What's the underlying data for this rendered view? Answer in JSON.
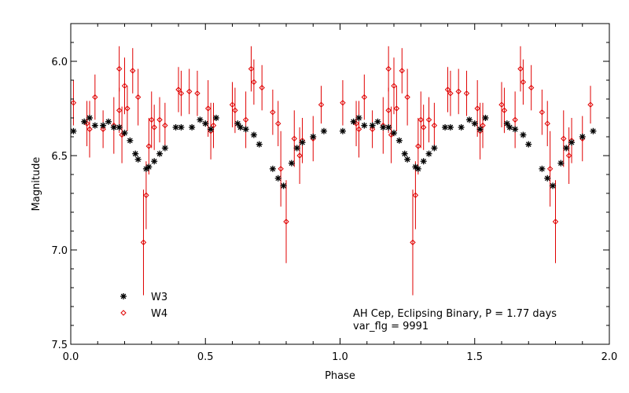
{
  "chart_data": {
    "type": "scatter",
    "title": "",
    "xlabel": "Phase",
    "ylabel": "Magnitude",
    "xlim": [
      0.0,
      2.0
    ],
    "ylim": [
      7.5,
      5.8
    ],
    "y_inverted": true,
    "grid": false,
    "legend_position": "bottom-left",
    "x_ticks": [
      "0.0",
      "0.5",
      "1.0",
      "1.5",
      "2.0"
    ],
    "x_tick_values": [
      0.0,
      0.5,
      1.0,
      1.5,
      2.0
    ],
    "y_ticks": [
      "6.0",
      "6.5",
      "7.0",
      "7.5"
    ],
    "y_tick_values": [
      6.0,
      6.5,
      7.0,
      7.5
    ],
    "annotations": [
      "AH Cep, Eclipsing Binary, P = 1.77 days",
      "var_flg = 9991"
    ],
    "series": [
      {
        "name": "W3",
        "marker": "asterisk",
        "color": "#000000",
        "points": [
          [
            0.01,
            6.37
          ],
          [
            0.05,
            6.32
          ],
          [
            0.07,
            6.3
          ],
          [
            0.09,
            6.34
          ],
          [
            0.12,
            6.34
          ],
          [
            0.14,
            6.32
          ],
          [
            0.16,
            6.35
          ],
          [
            0.18,
            6.35
          ],
          [
            0.2,
            6.38
          ],
          [
            0.22,
            6.42
          ],
          [
            0.24,
            6.49
          ],
          [
            0.25,
            6.52
          ],
          [
            0.28,
            6.57
          ],
          [
            0.29,
            6.56
          ],
          [
            0.31,
            6.53
          ],
          [
            0.33,
            6.49
          ],
          [
            0.35,
            6.46
          ],
          [
            0.39,
            6.35
          ],
          [
            0.41,
            6.35
          ],
          [
            0.45,
            6.35
          ],
          [
            0.48,
            6.31
          ],
          [
            0.5,
            6.33
          ],
          [
            0.52,
            6.36
          ],
          [
            0.54,
            6.3
          ],
          [
            0.62,
            6.33
          ],
          [
            0.63,
            6.35
          ],
          [
            0.65,
            6.36
          ],
          [
            0.68,
            6.39
          ],
          [
            0.7,
            6.44
          ],
          [
            0.75,
            6.57
          ],
          [
            0.77,
            6.62
          ],
          [
            0.79,
            6.66
          ],
          [
            0.82,
            6.54
          ],
          [
            0.84,
            6.46
          ],
          [
            0.86,
            6.43
          ],
          [
            0.9,
            6.4
          ],
          [
            0.94,
            6.37
          ],
          [
            1.01,
            6.37
          ],
          [
            1.05,
            6.32
          ],
          [
            1.07,
            6.3
          ],
          [
            1.09,
            6.34
          ],
          [
            1.12,
            6.34
          ],
          [
            1.14,
            6.32
          ],
          [
            1.16,
            6.35
          ],
          [
            1.18,
            6.35
          ],
          [
            1.2,
            6.38
          ],
          [
            1.22,
            6.42
          ],
          [
            1.24,
            6.49
          ],
          [
            1.25,
            6.52
          ],
          [
            1.28,
            6.56
          ],
          [
            1.29,
            6.57
          ],
          [
            1.31,
            6.53
          ],
          [
            1.33,
            6.49
          ],
          [
            1.35,
            6.46
          ],
          [
            1.39,
            6.35
          ],
          [
            1.41,
            6.35
          ],
          [
            1.45,
            6.35
          ],
          [
            1.48,
            6.31
          ],
          [
            1.5,
            6.33
          ],
          [
            1.52,
            6.36
          ],
          [
            1.54,
            6.3
          ],
          [
            1.62,
            6.33
          ],
          [
            1.63,
            6.35
          ],
          [
            1.65,
            6.36
          ],
          [
            1.68,
            6.39
          ],
          [
            1.7,
            6.44
          ],
          [
            1.75,
            6.57
          ],
          [
            1.77,
            6.62
          ],
          [
            1.79,
            6.66
          ],
          [
            1.82,
            6.54
          ],
          [
            1.84,
            6.46
          ],
          [
            1.86,
            6.43
          ],
          [
            1.9,
            6.4
          ],
          [
            1.94,
            6.37
          ]
        ]
      },
      {
        "name": "W4",
        "marker": "diamond",
        "color": "#e00000",
        "points": [
          [
            0.01,
            6.22,
            0.12
          ],
          [
            0.06,
            6.33,
            0.12
          ],
          [
            0.07,
            6.36,
            0.15
          ],
          [
            0.09,
            6.19,
            0.12
          ],
          [
            0.12,
            6.36,
            0.1
          ],
          [
            0.16,
            6.34,
            0.15
          ],
          [
            0.18,
            6.04,
            0.12
          ],
          [
            0.18,
            6.26,
            0.12
          ],
          [
            0.19,
            6.39,
            0.15
          ],
          [
            0.2,
            6.13,
            0.15
          ],
          [
            0.21,
            6.25,
            0.12
          ],
          [
            0.23,
            6.05,
            0.12
          ],
          [
            0.25,
            6.19,
            0.15
          ],
          [
            0.27,
            6.96,
            0.28
          ],
          [
            0.28,
            6.71,
            0.18
          ],
          [
            0.29,
            6.45,
            0.15
          ],
          [
            0.3,
            6.31,
            0.15
          ],
          [
            0.31,
            6.35,
            0.12
          ],
          [
            0.33,
            6.31,
            0.12
          ],
          [
            0.35,
            6.34,
            0.12
          ],
          [
            0.4,
            6.15,
            0.12
          ],
          [
            0.41,
            6.17,
            0.12
          ],
          [
            0.44,
            6.16,
            0.12
          ],
          [
            0.47,
            6.17,
            0.12
          ],
          [
            0.51,
            6.25,
            0.15
          ],
          [
            0.52,
            6.37,
            0.15
          ],
          [
            0.53,
            6.34,
            0.12
          ],
          [
            0.6,
            6.23,
            0.12
          ],
          [
            0.61,
            6.26,
            0.12
          ],
          [
            0.65,
            6.31,
            0.15
          ],
          [
            0.67,
            6.04,
            0.12
          ],
          [
            0.68,
            6.11,
            0.12
          ],
          [
            0.71,
            6.14,
            0.12
          ],
          [
            0.75,
            6.27,
            0.12
          ],
          [
            0.77,
            6.33,
            0.12
          ],
          [
            0.78,
            6.57,
            0.2
          ],
          [
            0.8,
            6.85,
            0.22
          ],
          [
            0.83,
            6.41,
            0.15
          ],
          [
            0.85,
            6.5,
            0.15
          ],
          [
            0.86,
            6.42,
            0.12
          ],
          [
            0.9,
            6.41,
            0.12
          ],
          [
            0.93,
            6.23,
            0.1
          ],
          [
            1.01,
            6.22,
            0.12
          ],
          [
            1.06,
            6.33,
            0.12
          ],
          [
            1.07,
            6.36,
            0.15
          ],
          [
            1.09,
            6.19,
            0.12
          ],
          [
            1.12,
            6.36,
            0.1
          ],
          [
            1.16,
            6.34,
            0.15
          ],
          [
            1.18,
            6.04,
            0.12
          ],
          [
            1.18,
            6.26,
            0.12
          ],
          [
            1.19,
            6.39,
            0.15
          ],
          [
            1.2,
            6.13,
            0.15
          ],
          [
            1.21,
            6.25,
            0.12
          ],
          [
            1.23,
            6.05,
            0.12
          ],
          [
            1.25,
            6.19,
            0.15
          ],
          [
            1.27,
            6.96,
            0.28
          ],
          [
            1.28,
            6.71,
            0.18
          ],
          [
            1.29,
            6.45,
            0.15
          ],
          [
            1.3,
            6.31,
            0.15
          ],
          [
            1.31,
            6.35,
            0.12
          ],
          [
            1.33,
            6.31,
            0.12
          ],
          [
            1.35,
            6.34,
            0.12
          ],
          [
            1.4,
            6.15,
            0.12
          ],
          [
            1.41,
            6.17,
            0.12
          ],
          [
            1.44,
            6.16,
            0.12
          ],
          [
            1.47,
            6.17,
            0.12
          ],
          [
            1.51,
            6.25,
            0.15
          ],
          [
            1.52,
            6.37,
            0.15
          ],
          [
            1.53,
            6.34,
            0.12
          ],
          [
            1.6,
            6.23,
            0.12
          ],
          [
            1.61,
            6.26,
            0.12
          ],
          [
            1.65,
            6.31,
            0.15
          ],
          [
            1.67,
            6.04,
            0.12
          ],
          [
            1.68,
            6.11,
            0.12
          ],
          [
            1.71,
            6.14,
            0.12
          ],
          [
            1.75,
            6.27,
            0.12
          ],
          [
            1.77,
            6.33,
            0.12
          ],
          [
            1.78,
            6.57,
            0.2
          ],
          [
            1.8,
            6.85,
            0.22
          ],
          [
            1.83,
            6.41,
            0.15
          ],
          [
            1.85,
            6.5,
            0.15
          ],
          [
            1.86,
            6.42,
            0.12
          ],
          [
            1.9,
            6.41,
            0.12
          ],
          [
            1.93,
            6.23,
            0.1
          ]
        ]
      }
    ]
  }
}
